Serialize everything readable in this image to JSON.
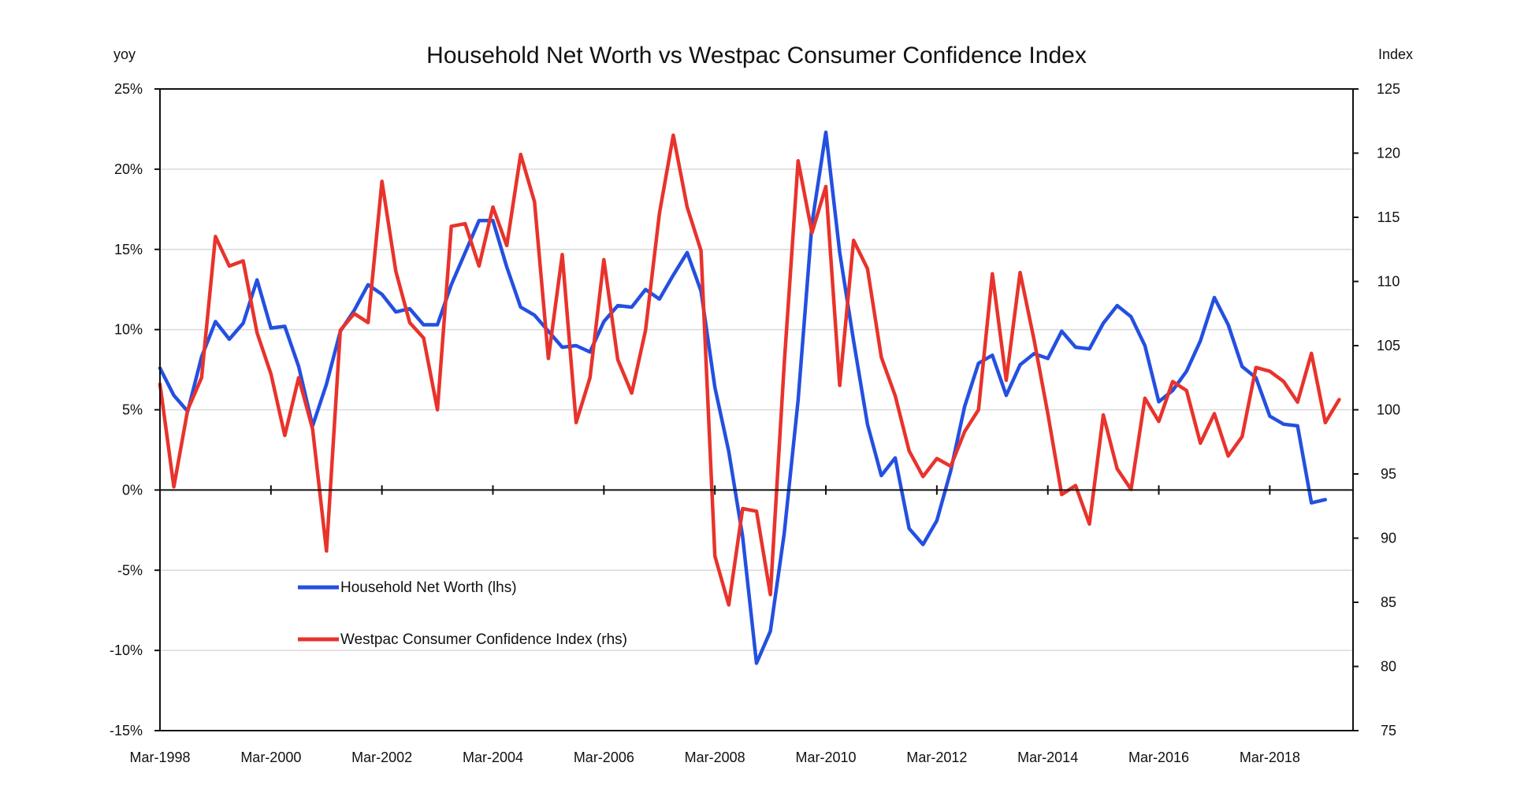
{
  "chart_data": {
    "type": "line",
    "title": "Household Net Worth vs Westpac Consumer Confidence Index",
    "left_axis_unit": "yoy",
    "right_axis_unit": "Index",
    "left_ylim": [
      -15,
      25
    ],
    "right_ylim": [
      75,
      125
    ],
    "left_ticks": [
      25,
      20,
      15,
      10,
      5,
      0,
      -5,
      -10,
      -15
    ],
    "left_tick_labels": [
      "25%",
      "20%",
      "15%",
      "10%",
      "5%",
      "0%",
      "-5%",
      "-10%",
      "-15%"
    ],
    "right_ticks": [
      125,
      120,
      115,
      110,
      105,
      100,
      95,
      90,
      85,
      80,
      75
    ],
    "right_tick_labels": [
      "125",
      "120",
      "115",
      "110",
      "105",
      "100",
      "95",
      "90",
      "85",
      "80",
      "75"
    ],
    "x_start_year": 1998,
    "x_end_year": 2019.5,
    "x_ticks": [
      1998,
      2000,
      2002,
      2004,
      2006,
      2008,
      2010,
      2012,
      2014,
      2016,
      2018
    ],
    "x_tick_labels": [
      "Mar-1998",
      "Mar-2000",
      "Mar-2002",
      "Mar-2004",
      "Mar-2006",
      "Mar-2008",
      "Mar-2010",
      "Mar-2012",
      "Mar-2014",
      "Mar-2016",
      "Mar-2018"
    ],
    "grid": true,
    "legend_placement": "lower-left",
    "series": [
      {
        "name": "Household Net Worth (lhs)",
        "axis": "left",
        "color": "#2450e0",
        "x_start": 1998,
        "x_step": 0.25,
        "values": [
          7.6,
          5.9,
          4.9,
          8.3,
          10.5,
          9.4,
          10.4,
          13.1,
          10.1,
          10.2,
          7.7,
          4.0,
          6.6,
          9.9,
          11.2,
          12.8,
          12.2,
          11.1,
          11.3,
          10.3,
          10.3,
          12.8,
          14.8,
          16.8,
          16.8,
          13.9,
          11.4,
          10.9,
          9.9,
          8.9,
          9.0,
          8.6,
          10.5,
          11.5,
          11.4,
          12.5,
          11.9,
          13.4,
          14.8,
          12.4,
          6.4,
          2.4,
          -2.9,
          -10.8,
          -8.8,
          -2.7,
          5.6,
          16.6,
          22.3,
          14.8,
          9.3,
          4.1,
          0.9,
          2.0,
          -2.4,
          -3.4,
          -1.9,
          1.2,
          5.2,
          7.9,
          8.4,
          5.9,
          7.8,
          8.5,
          8.2,
          9.9,
          8.9,
          8.8,
          10.4,
          11.5,
          10.8,
          9.0,
          5.5,
          6.2,
          7.4,
          9.3,
          12.0,
          10.3,
          7.7,
          7.0,
          4.6,
          4.1,
          4.0,
          -0.8,
          -0.6
        ]
      },
      {
        "name": "Westpac Consumer Confidence Index (rhs)",
        "axis": "right",
        "color": "#e8332c",
        "x_start": 1998,
        "x_step": 0.25,
        "values": [
          102,
          94,
          100,
          102.5,
          113.5,
          111.2,
          111.6,
          106,
          102.8,
          98,
          102.5,
          98.5,
          89,
          106.2,
          107.5,
          106.8,
          117.8,
          110.8,
          106.8,
          105.6,
          100,
          114.3,
          114.5,
          111.2,
          115.8,
          112.8,
          119.9,
          116.2,
          104,
          112.1,
          99,
          102.5,
          111.7,
          103.9,
          101.3,
          106.2,
          115.3,
          121.4,
          115.8,
          112.4,
          88.6,
          84.8,
          92.3,
          92.1,
          85.6,
          103.6,
          119.4,
          113.8,
          117.4,
          101.9,
          113.2,
          111,
          104.1,
          101.1,
          96.8,
          94.8,
          96.2,
          95.6,
          98.3,
          100,
          110.6,
          102.3,
          110.7,
          105.5,
          99.7,
          93.4,
          94.1,
          91.1,
          99.6,
          95.4,
          93.8,
          100.9,
          99.1,
          102.2,
          101.5,
          97.4,
          99.7,
          96.4,
          97.9,
          103.3,
          103,
          102.2,
          100.6,
          104.4,
          99,
          100.8
        ]
      }
    ]
  }
}
